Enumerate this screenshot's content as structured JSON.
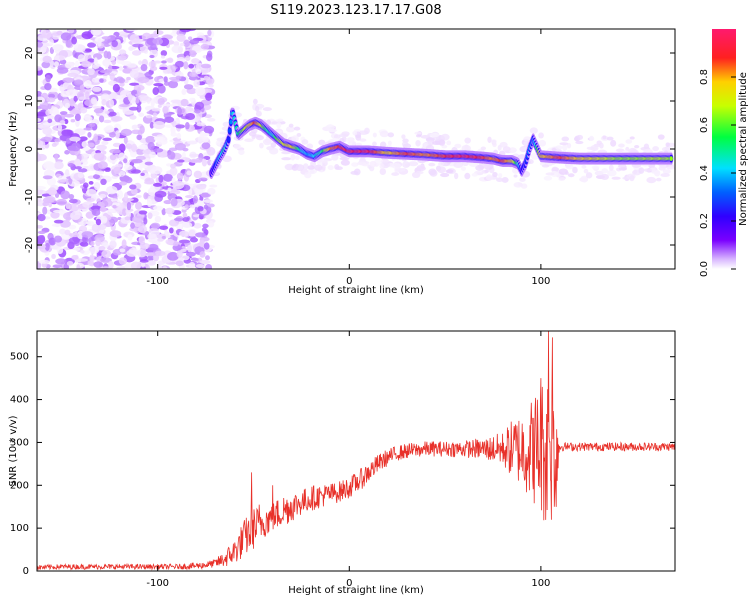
{
  "title": "S119.2023.123.17.17.G08",
  "colors": {
    "snr_line": "#e8312a",
    "colormap": [
      "#ffffff",
      "#e6c8ff",
      "#b070ff",
      "#7a00ff",
      "#2f00ff",
      "#0050ff",
      "#00e0ff",
      "#00ff40",
      "#c8ff00",
      "#ffd000",
      "#ff2020",
      "#ff1a6e"
    ]
  },
  "chart_data": [
    {
      "type": "heatmap",
      "title": "S119.2023.123.17.17.G08",
      "xlabel": "Height of straight line (km)",
      "ylabel": "Frequency (Hz)",
      "xlim": [
        -163,
        170
      ],
      "ylim": [
        -25,
        25
      ],
      "xticks": [
        -100,
        0,
        100
      ],
      "yticks": [
        -20,
        -10,
        0,
        10,
        20
      ],
      "colorbar": {
        "label": "Normalized spectral amplitude",
        "range": [
          0,
          1
        ],
        "ticks": [
          "0.0",
          "0.2",
          "0.4",
          "0.6",
          "0.8"
        ],
        "colormap": "rainbow"
      },
      "noise_region": {
        "x_range": [
          -163,
          -72
        ],
        "y_range": [
          -25,
          25
        ]
      },
      "ridge": {
        "x": [
          -72,
          -68,
          -65,
          -63,
          -61,
          -58,
          -55,
          -52,
          -49,
          -46,
          -43,
          -40,
          -37,
          -34,
          -30,
          -26,
          -22,
          -18,
          -14,
          -10,
          -5,
          0,
          10,
          20,
          30,
          40,
          50,
          60,
          70,
          75,
          80,
          85,
          88,
          90,
          92,
          94,
          96,
          100,
          110,
          120,
          130,
          140,
          150,
          160,
          168
        ],
        "y": [
          -5,
          -2,
          0,
          2,
          8,
          3,
          4,
          5,
          5.5,
          5,
          4,
          3,
          2,
          1,
          0.5,
          0,
          -1,
          -1.5,
          -0.5,
          0,
          0.5,
          -0.5,
          -0.5,
          -0.8,
          -1,
          -1.2,
          -1.5,
          -1.5,
          -1.8,
          -2,
          -2.5,
          -2.5,
          -3,
          -4.5,
          -3,
          0,
          2,
          -1.5,
          -1.8,
          -2,
          -2,
          -2,
          -2,
          -2,
          -2
        ],
        "amplitude": [
          0.3,
          0.5,
          0.6,
          0.4,
          0.55,
          0.6,
          0.7,
          0.8,
          0.9,
          0.75,
          0.6,
          0.55,
          0.7,
          0.75,
          0.8,
          0.6,
          0.5,
          0.55,
          0.6,
          0.85,
          0.9,
          0.95,
          0.95,
          0.8,
          0.9,
          0.85,
          0.9,
          0.95,
          0.9,
          0.85,
          0.9,
          0.8,
          0.6,
          0.35,
          0.4,
          0.5,
          0.45,
          0.8,
          0.9,
          0.8,
          0.75,
          0.7,
          0.7,
          0.72,
          0.7
        ]
      }
    },
    {
      "type": "line",
      "xlabel": "Height of straight line (km)",
      "ylabel": "SNR (10 * v/v)",
      "xlim": [
        -163,
        170
      ],
      "ylim": [
        0,
        560
      ],
      "xticks": [
        -100,
        0,
        100
      ],
      "yticks": [
        0,
        100,
        200,
        300,
        400,
        500
      ],
      "series": [
        {
          "color": "#e8312a",
          "x": [
            -163,
            -150,
            -130,
            -110,
            -90,
            -80,
            -75,
            -70,
            -65,
            -60,
            -55,
            -50,
            -45,
            -40,
            -35,
            -30,
            -25,
            -20,
            -15,
            -10,
            -5,
            0,
            5,
            10,
            15,
            20,
            25,
            30,
            40,
            50,
            60,
            70,
            80,
            85,
            90,
            95,
            100,
            103,
            105,
            108,
            110,
            120,
            130,
            140,
            150,
            160,
            170
          ],
          "y": [
            8,
            10,
            10,
            10,
            10,
            12,
            14,
            18,
            28,
            45,
            75,
            100,
            115,
            125,
            140,
            150,
            160,
            170,
            175,
            180,
            185,
            195,
            210,
            230,
            250,
            265,
            275,
            280,
            285,
            285,
            285,
            285,
            285,
            285,
            285,
            285,
            285,
            285,
            285,
            285,
            290,
            290,
            290,
            290,
            290,
            290,
            290
          ],
          "spread": [
            6,
            6,
            6,
            6,
            6,
            8,
            8,
            10,
            20,
            30,
            45,
            50,
            40,
            35,
            40,
            35,
            30,
            30,
            28,
            25,
            25,
            25,
            25,
            25,
            22,
            20,
            18,
            18,
            18,
            18,
            20,
            25,
            40,
            70,
            90,
            120,
            160,
            190,
            190,
            150,
            10,
            10,
            10,
            10,
            10,
            10,
            10
          ],
          "peaks": [
            {
              "x": -51,
              "y": 230
            },
            {
              "x": -47,
              "y": 155
            },
            {
              "x": -40,
              "y": 200
            },
            {
              "x": 100,
              "y": 450
            },
            {
              "x": 104,
              "y": 560
            },
            {
              "x": 106,
              "y": 545
            },
            {
              "x": 107,
              "y": 150
            }
          ]
        }
      ]
    }
  ]
}
